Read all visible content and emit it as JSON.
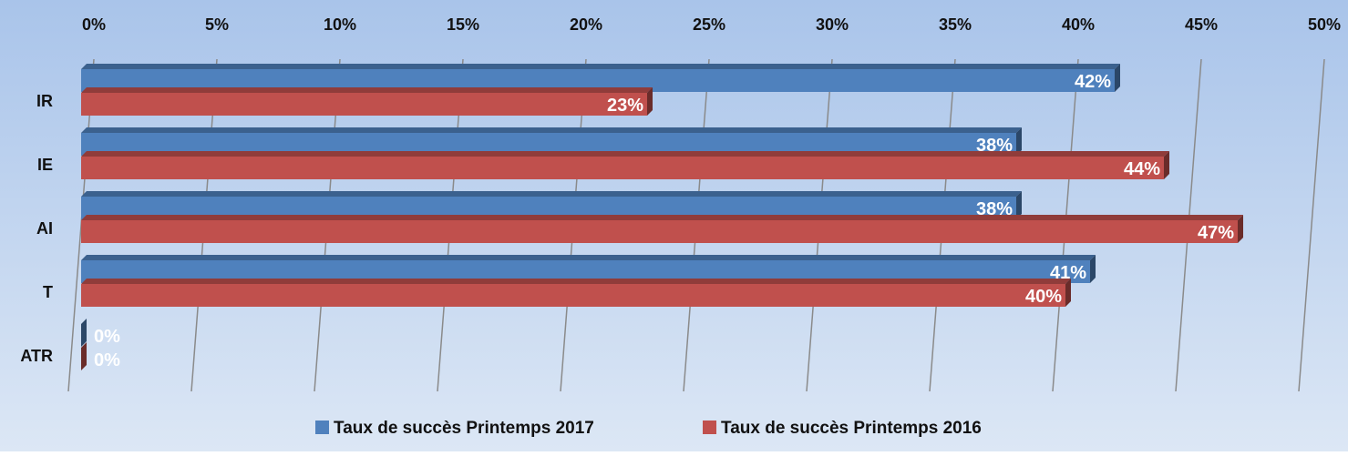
{
  "chart_data": {
    "type": "bar",
    "orientation": "horizontal",
    "categories": [
      "IR",
      "IE",
      "AI",
      "T",
      "ATR"
    ],
    "series": [
      {
        "name": "Taux de succès Printemps 2017",
        "color": "#4f81bd",
        "values": [
          42,
          38,
          38,
          41,
          0
        ],
        "value_labels": [
          "42%",
          "38%",
          "38%",
          "41%",
          "0%"
        ]
      },
      {
        "name": "Taux de succès Printemps 2016",
        "color": "#c0504d",
        "values": [
          23,
          44,
          47,
          40,
          0
        ],
        "value_labels": [
          "23%",
          "44%",
          "47%",
          "40%",
          "0%"
        ]
      }
    ],
    "xlim": [
      0,
      50
    ],
    "xticks": [
      {
        "value": 0,
        "label": "0%"
      },
      {
        "value": 5,
        "label": "5%"
      },
      {
        "value": 10,
        "label": "10%"
      },
      {
        "value": 15,
        "label": "15%"
      },
      {
        "value": 20,
        "label": "20%"
      },
      {
        "value": 25,
        "label": "25%"
      },
      {
        "value": 30,
        "label": "30%"
      },
      {
        "value": 35,
        "label": "35%"
      },
      {
        "value": 40,
        "label": "40%"
      },
      {
        "value": 45,
        "label": "45%"
      },
      {
        "value": 50,
        "label": "50%"
      }
    ],
    "grid": true,
    "legend": "bottom"
  }
}
